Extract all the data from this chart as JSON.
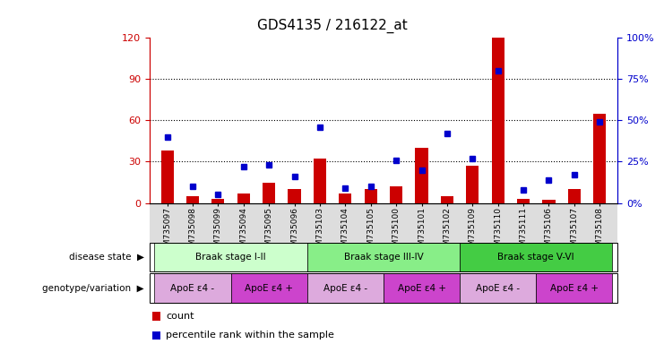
{
  "title": "GDS4135 / 216122_at",
  "samples": [
    "GSM735097",
    "GSM735098",
    "GSM735099",
    "GSM735094",
    "GSM735095",
    "GSM735096",
    "GSM735103",
    "GSM735104",
    "GSM735105",
    "GSM735100",
    "GSM735101",
    "GSM735102",
    "GSM735109",
    "GSM735110",
    "GSM735111",
    "GSM735106",
    "GSM735107",
    "GSM735108"
  ],
  "counts": [
    38,
    5,
    3,
    7,
    15,
    10,
    32,
    7,
    10,
    12,
    40,
    5,
    27,
    120,
    3,
    2,
    10,
    65
  ],
  "percentiles": [
    40,
    10,
    5,
    22,
    23,
    16,
    46,
    9,
    10,
    26,
    20,
    42,
    27,
    80,
    8,
    14,
    17,
    49
  ],
  "ylim_left": [
    0,
    120
  ],
  "ylim_right": [
    0,
    100
  ],
  "yticks_left": [
    0,
    30,
    60,
    90,
    120
  ],
  "yticks_right": [
    0,
    25,
    50,
    75,
    100
  ],
  "bar_color": "#cc0000",
  "dot_color": "#0000cc",
  "background_color": "#ffffff",
  "disease_states": [
    {
      "label": "Braak stage I-II",
      "start": 0,
      "end": 6,
      "color": "#ccffcc"
    },
    {
      "label": "Braak stage III-IV",
      "start": 6,
      "end": 12,
      "color": "#88ee88"
    },
    {
      "label": "Braak stage V-VI",
      "start": 12,
      "end": 18,
      "color": "#44cc44"
    }
  ],
  "genotype_groups": [
    {
      "label": "ApoE ε4 -",
      "start": 0,
      "end": 3,
      "color": "#ddaadd"
    },
    {
      "label": "ApoE ε4 +",
      "start": 3,
      "end": 6,
      "color": "#cc44cc"
    },
    {
      "label": "ApoE ε4 -",
      "start": 6,
      "end": 9,
      "color": "#ddaadd"
    },
    {
      "label": "ApoE ε4 +",
      "start": 9,
      "end": 12,
      "color": "#cc44cc"
    },
    {
      "label": "ApoE ε4 -",
      "start": 12,
      "end": 15,
      "color": "#ddaadd"
    },
    {
      "label": "ApoE ε4 +",
      "start": 15,
      "end": 18,
      "color": "#cc44cc"
    }
  ],
  "legend_count_label": "count",
  "legend_percentile_label": "percentile rank within the sample",
  "left_axis_color": "#cc0000",
  "right_axis_color": "#0000cc",
  "disease_state_label": "disease state",
  "genotype_label": "genotype/variation"
}
